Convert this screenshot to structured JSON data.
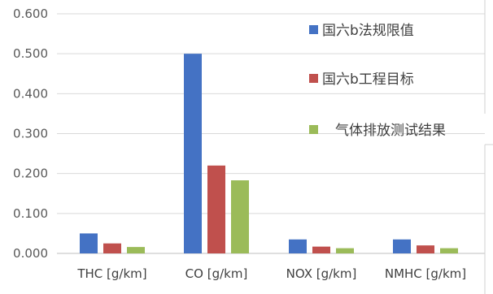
{
  "chart_data": {
    "type": "bar",
    "title": "",
    "xlabel": "",
    "ylabel": "",
    "ylim": [
      0,
      0.6
    ],
    "yticks": [
      "0.000",
      "0.100",
      "0.200",
      "0.300",
      "0.400",
      "0.500",
      "0.600"
    ],
    "grid": true,
    "legend_position": "right",
    "categories": [
      "THC [g/km]",
      "CO [g/km]",
      "NOX [g/km]",
      "NMHC [g/km]"
    ],
    "series": [
      {
        "name": "国六b法规限值",
        "color": "#4472C4",
        "values": [
          0.05,
          0.5,
          0.035,
          0.035
        ]
      },
      {
        "name": "国六b工程目标",
        "color": "#C0504D",
        "values": [
          0.025,
          0.22,
          0.017,
          0.02
        ]
      },
      {
        "name": "气体排放测试结果",
        "color": "#9BBB59",
        "values": [
          0.016,
          0.183,
          0.013,
          0.013
        ]
      }
    ]
  }
}
